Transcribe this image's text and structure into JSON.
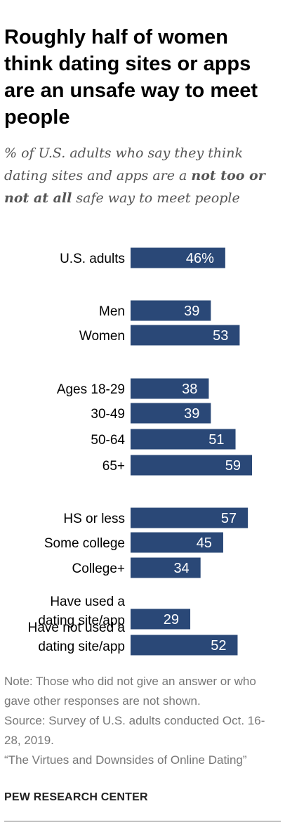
{
  "title": "Roughly half of women think dating sites or apps are an unsafe way to meet people",
  "subtitle": {
    "pre": "% of U.S. adults who say they think dating sites and apps are a ",
    "bold": "not too or not at all",
    "post": " safe way to meet people"
  },
  "chart_data": {
    "type": "bar",
    "orientation": "horizontal",
    "categories": [
      [
        "U.S. adults"
      ],
      [
        "Men"
      ],
      [
        "Women"
      ],
      [
        "Ages 18-29"
      ],
      [
        "30-49"
      ],
      [
        "50-64"
      ],
      [
        "65+"
      ],
      [
        "HS or less"
      ],
      [
        "Some college"
      ],
      [
        "College+"
      ],
      [
        "Have used a",
        "dating site/app"
      ],
      [
        "Have not used a",
        "dating site/app"
      ]
    ],
    "values": [
      46,
      39,
      53,
      38,
      39,
      51,
      59,
      57,
      45,
      34,
      29,
      52
    ],
    "data_labels": [
      "46%",
      "39",
      "53",
      "38",
      "39",
      "51",
      "59",
      "57",
      "45",
      "34",
      "29",
      "52"
    ],
    "xlim": [
      0,
      100
    ],
    "bar_color": "#2a4877",
    "label_color": "#ffffff"
  },
  "notes": [
    "Note: Those who did not give an answer or who gave other responses are not shown.",
    "Source: Survey of U.S. adults conducted Oct. 16-28, 2019.",
    "“The Virtues and Downsides of Online Dating”"
  ],
  "org": "PEW RESEARCH CENTER"
}
